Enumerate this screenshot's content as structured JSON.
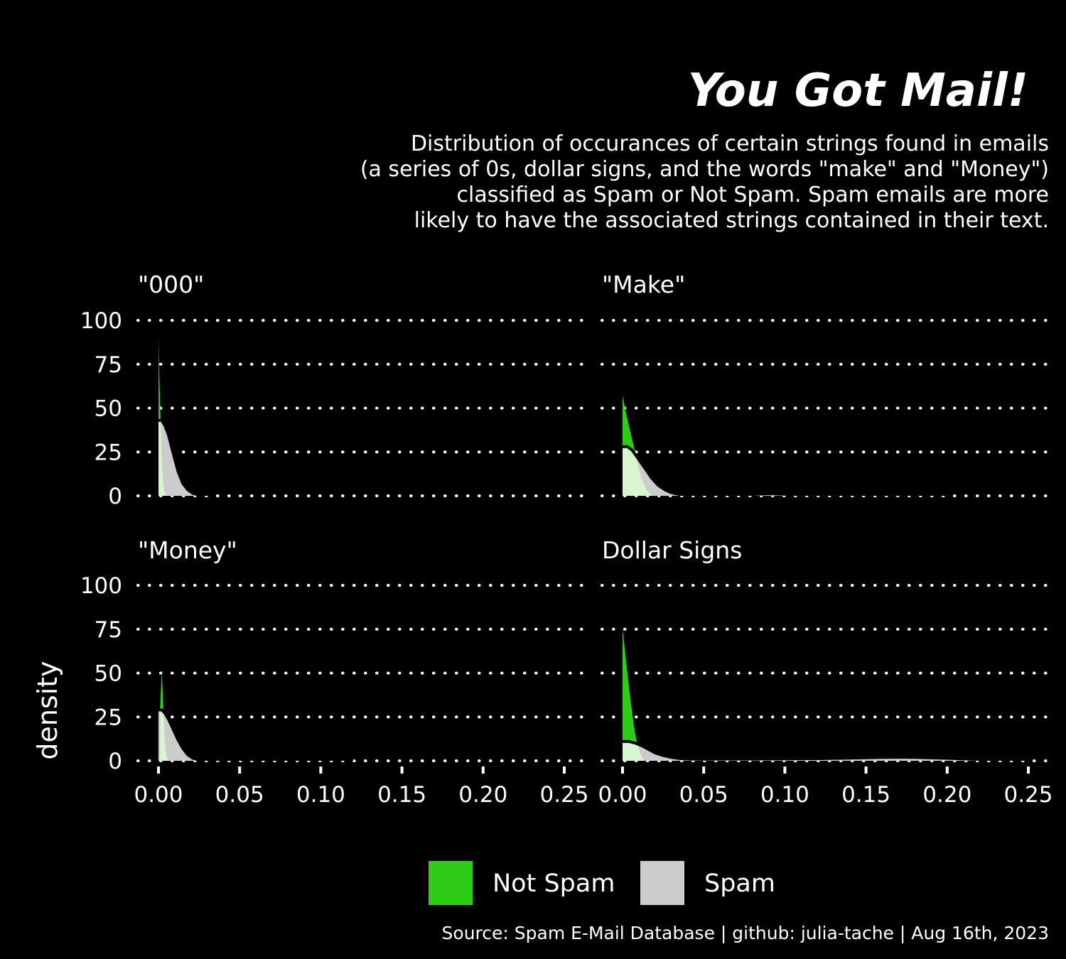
{
  "title": "You Got Mail!",
  "subtitle_lines": [
    "Distribution of occurances of certain strings found in emails",
    "(a series of 0s, dollar signs, and the words \"make\" and \"Money\")",
    "classified as Spam or Not Spam. Spam emails are more",
    "likely to have the associated strings contained in their text."
  ],
  "caption": "Source: Spam E-Mail Database | github: julia-tache | Aug 16th, 2023",
  "colors": {
    "background": "#000000",
    "not_spam": "#2ECC17",
    "spam": "#CCCCCC",
    "overlap": "#D9F5D0",
    "text": "#FFFFFF"
  },
  "legend": [
    {
      "label": "Not Spam",
      "color": "#2ECC17"
    },
    {
      "label": "Spam",
      "color": "#CCCCCC"
    }
  ],
  "chart_data": {
    "type": "area",
    "ylabel": "density",
    "xlabel": "",
    "xlim": [
      0,
      0.25
    ],
    "ylim": [
      0,
      100
    ],
    "x_ticks": [
      "0.00",
      "0.05",
      "0.10",
      "0.15",
      "0.20",
      "0.25"
    ],
    "y_ticks": [
      "0",
      "25",
      "50",
      "75",
      "100"
    ],
    "grid": "horizontal dotted",
    "legend_position": "bottom",
    "facets": [
      {
        "title": "\"000\"",
        "series": [
          {
            "name": "Not Spam",
            "x": [
              0,
              0.0005,
              0.001,
              0.0015,
              0.002,
              0.003,
              0.004,
              0.006
            ],
            "y": [
              90,
              70,
              52,
              38,
              20,
              6,
              1,
              0
            ]
          },
          {
            "name": "Spam",
            "x": [
              0,
              0.002,
              0.004,
              0.006,
              0.008,
              0.01,
              0.012,
              0.015,
              0.018,
              0.021,
              0.025,
              0.03,
              0.035
            ],
            "y": [
              43,
              43,
              40,
              35,
              28,
              21,
              14,
              7,
              3.5,
              1.5,
              0.4,
              0.05,
              0
            ]
          }
        ]
      },
      {
        "title": "\"Make\"",
        "series": [
          {
            "name": "Not Spam",
            "x": [
              0,
              0.002,
              0.004,
              0.006,
              0.008,
              0.01,
              0.012,
              0.015,
              0.018
            ],
            "y": [
              57,
              48,
              40,
              32,
              24,
              16,
              9,
              3,
              0.2
            ]
          },
          {
            "name": "Spam",
            "x": [
              0,
              0.003,
              0.006,
              0.009,
              0.012,
              0.015,
              0.018,
              0.022,
              0.026,
              0.03,
              0.035,
              0.04,
              0.05,
              0.06,
              0.07,
              0.08,
              0.09,
              0.1,
              0.11,
              0.12,
              0.14,
              0.16,
              0.17,
              0.18,
              0.2
            ],
            "y": [
              28,
              28,
              26,
              22,
              18,
              14,
              10,
              6,
              3.5,
              1.8,
              0.8,
              0.5,
              0.3,
              0.3,
              0.4,
              0.8,
              1.2,
              0.9,
              0.3,
              0.1,
              0.2,
              0.5,
              0.6,
              0.4,
              0
            ]
          }
        ]
      },
      {
        "title": "\"Money\"",
        "series": [
          {
            "name": "Not Spam",
            "x": [
              0.001,
              0.002,
              0.003,
              0.004,
              0.005,
              0.007
            ],
            "y": [
              30,
              52,
              30,
              10,
              2,
              0
            ]
          },
          {
            "name": "Spam",
            "x": [
              0,
              0.002,
              0.004,
              0.006,
              0.008,
              0.01,
              0.012,
              0.015,
              0.018,
              0.021,
              0.025,
              0.03,
              0.035,
              0.05,
              0.06,
              0.07,
              0.08,
              0.09,
              0.1,
              0.11,
              0.12
            ],
            "y": [
              29,
              29,
              27,
              24,
              20,
              16,
              12,
              7,
              3.5,
              1.5,
              0.5,
              0.15,
              0.05,
              0.1,
              0.2,
              0.4,
              0.8,
              0.6,
              0.3,
              0.1,
              0
            ]
          }
        ]
      },
      {
        "title": "Dollar Signs",
        "series": [
          {
            "name": "Not Spam",
            "x": [
              0,
              0.0015,
              0.003,
              0.0045,
              0.006,
              0.0075,
              0.009,
              0.011,
              0.013
            ],
            "y": [
              75,
              63,
              50,
              38,
              27,
              17,
              10,
              4,
              0.5
            ]
          },
          {
            "name": "Spam",
            "x": [
              0,
              0.004,
              0.008,
              0.012,
              0.016,
              0.02,
              0.025,
              0.03,
              0.035,
              0.04,
              0.05,
              0.06,
              0.08,
              0.1,
              0.12,
              0.14,
              0.16,
              0.17,
              0.18,
              0.2,
              0.22,
              0.24,
              0.25
            ],
            "y": [
              11,
              11,
              10,
              8.5,
              6.5,
              4.5,
              3,
              2,
              1.3,
              1,
              0.9,
              1,
              1,
              1.1,
              1.2,
              1.5,
              1.9,
              2,
              1.9,
              1.4,
              0.8,
              0.3,
              0.05
            ]
          }
        ]
      }
    ]
  }
}
